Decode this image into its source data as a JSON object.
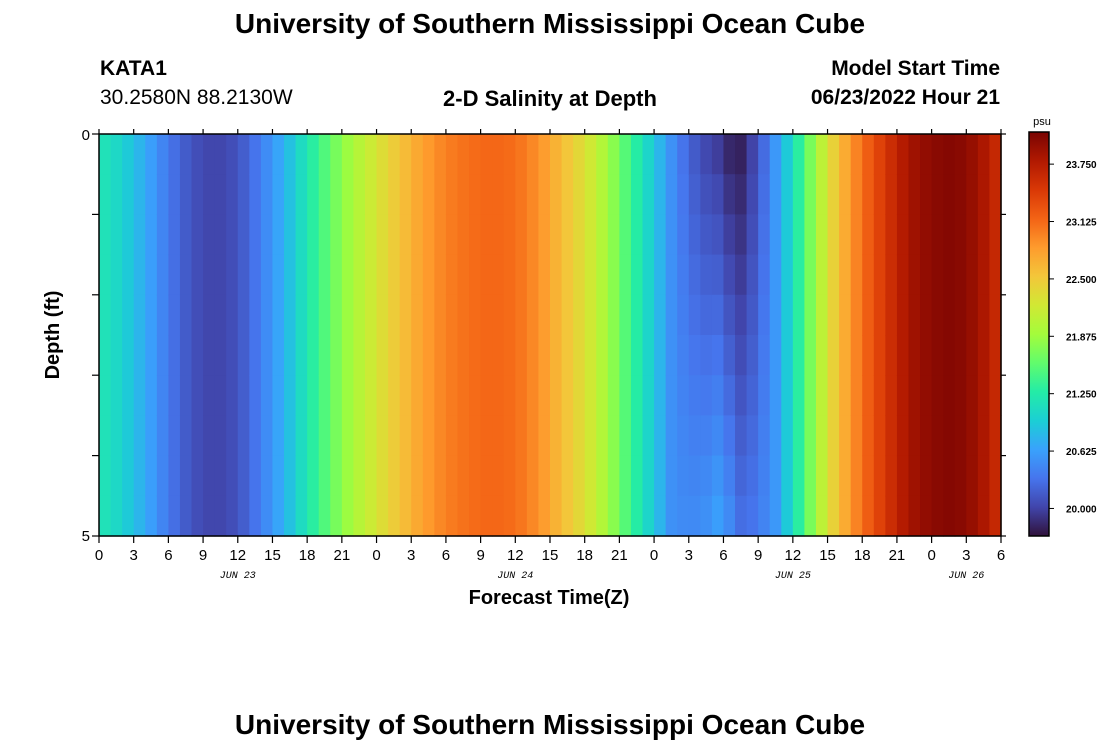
{
  "page": {
    "title_top": "University of Southern Mississippi Ocean Cube",
    "title_bottom": "University of Southern Mississippi Ocean Cube",
    "station_id": "KATA1",
    "station_coords": "30.2580N  88.2130W",
    "chart_title": "2-D Salinity at Depth",
    "model_start_label": "Model Start Time",
    "model_start_value": "06/23/2022 Hour 21"
  },
  "chart_data": {
    "type": "heatmap",
    "title": "2-D Salinity at Depth",
    "xlabel": "Forecast Time(Z)",
    "ylabel": "Depth (ft)",
    "x_units": "forecast hours from 06/23/2022 00Z",
    "xlim": [
      0,
      78
    ],
    "ylim": [
      0,
      5
    ],
    "y_inverted": true,
    "x_tick_values": [
      0,
      3,
      6,
      9,
      12,
      15,
      18,
      21,
      24,
      27,
      30,
      33,
      36,
      39,
      42,
      45,
      48,
      51,
      54,
      57,
      60,
      63,
      66,
      69,
      72,
      75,
      78
    ],
    "x_tick_labels": [
      "0",
      "3",
      "6",
      "9",
      "12",
      "15",
      "18",
      "21",
      "0",
      "3",
      "6",
      "9",
      "12",
      "15",
      "18",
      "21",
      "0",
      "3",
      "6",
      "9",
      "12",
      "15",
      "18",
      "21",
      "0",
      "3",
      "6"
    ],
    "y_tick_labels": [
      "0",
      "5"
    ],
    "day_labels": [
      {
        "label": "JUN 23",
        "x": 12
      },
      {
        "label": "JUN 24",
        "x": 36
      },
      {
        "label": "JUN 25",
        "x": 60
      },
      {
        "label": "JUN 26",
        "x": 75
      }
    ],
    "depth_levels": [
      0,
      0.5,
      1,
      1.5,
      2,
      2.5,
      3,
      3.5,
      4,
      4.5,
      5
    ],
    "surface_profile": [
      {
        "x": 0,
        "v": 21.2
      },
      {
        "x": 2,
        "v": 21.0
      },
      {
        "x": 4,
        "v": 20.7
      },
      {
        "x": 6,
        "v": 20.35
      },
      {
        "x": 8,
        "v": 20.1
      },
      {
        "x": 10,
        "v": 20.0
      },
      {
        "x": 12,
        "v": 20.1
      },
      {
        "x": 14,
        "v": 20.4
      },
      {
        "x": 16,
        "v": 20.75
      },
      {
        "x": 18,
        "v": 21.2
      },
      {
        "x": 20,
        "v": 21.6
      },
      {
        "x": 22,
        "v": 21.95
      },
      {
        "x": 24,
        "v": 22.25
      },
      {
        "x": 26,
        "v": 22.55
      },
      {
        "x": 28,
        "v": 22.8
      },
      {
        "x": 30,
        "v": 23.0
      },
      {
        "x": 32,
        "v": 23.1
      },
      {
        "x": 34,
        "v": 23.15
      },
      {
        "x": 36,
        "v": 23.1
      },
      {
        "x": 38,
        "v": 22.9
      },
      {
        "x": 40,
        "v": 22.6
      },
      {
        "x": 42,
        "v": 22.3
      },
      {
        "x": 44,
        "v": 21.9
      },
      {
        "x": 46,
        "v": 21.4
      },
      {
        "x": 48,
        "v": 20.9
      },
      {
        "x": 50,
        "v": 20.4
      },
      {
        "x": 52,
        "v": 20.05
      },
      {
        "x": 54,
        "v": 19.9
      },
      {
        "x": 55,
        "v": 19.7
      },
      {
        "x": 56,
        "v": 19.85
      },
      {
        "x": 58,
        "v": 20.4
      },
      {
        "x": 60,
        "v": 21.1
      },
      {
        "x": 62,
        "v": 21.9
      },
      {
        "x": 64,
        "v": 22.6
      },
      {
        "x": 66,
        "v": 23.1
      },
      {
        "x": 68,
        "v": 23.5
      },
      {
        "x": 70,
        "v": 23.85
      },
      {
        "x": 72,
        "v": 24.0
      },
      {
        "x": 74,
        "v": 24.05
      },
      {
        "x": 76,
        "v": 23.9
      },
      {
        "x": 78,
        "v": 23.55
      }
    ],
    "depth_anomaly": {
      "x_range": [
        49,
        58
      ],
      "center_x": 54,
      "max_increase": 0.8
    },
    "colorbar": {
      "unit": "psu",
      "range": [
        19.7,
        24.1
      ],
      "tick_labels": [
        "23.750",
        "23.125",
        "22.500",
        "21.875",
        "21.250",
        "20.625",
        "20.000"
      ],
      "tick_values": [
        23.75,
        23.125,
        22.5,
        21.875,
        21.25,
        20.625,
        20.0
      ]
    },
    "colormap": [
      "#30123b",
      "#4145ab",
      "#4675ed",
      "#39a2fc",
      "#1bcfd4",
      "#24eca6",
      "#61fc6c",
      "#a4fc3b",
      "#d1e834",
      "#f3c63a",
      "#fe9b2d",
      "#f36315",
      "#d93806",
      "#b11901",
      "#7a0402"
    ],
    "grid": false,
    "legend": "colorbar-right"
  }
}
